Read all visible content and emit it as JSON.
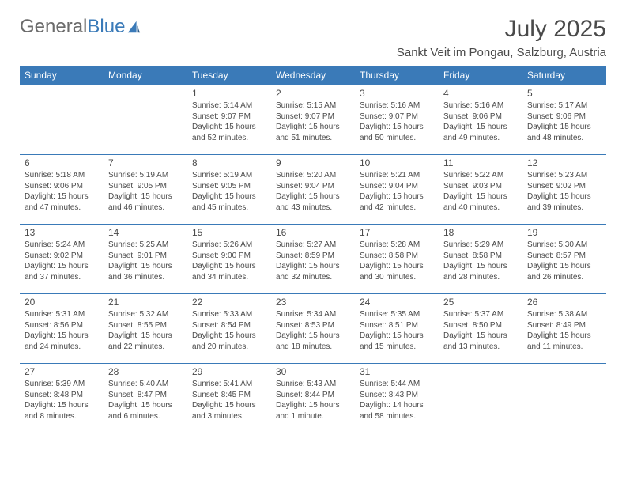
{
  "logo": {
    "text1": "General",
    "text2": "Blue"
  },
  "title": "July 2025",
  "location": "Sankt Veit im Pongau, Salzburg, Austria",
  "header_bg": "#3a7ab8",
  "days_of_week": [
    "Sunday",
    "Monday",
    "Tuesday",
    "Wednesday",
    "Thursday",
    "Friday",
    "Saturday"
  ],
  "weeks": [
    [
      null,
      null,
      {
        "n": "1",
        "sr": "5:14 AM",
        "ss": "9:07 PM",
        "dl": "15 hours and 52 minutes."
      },
      {
        "n": "2",
        "sr": "5:15 AM",
        "ss": "9:07 PM",
        "dl": "15 hours and 51 minutes."
      },
      {
        "n": "3",
        "sr": "5:16 AM",
        "ss": "9:07 PM",
        "dl": "15 hours and 50 minutes."
      },
      {
        "n": "4",
        "sr": "5:16 AM",
        "ss": "9:06 PM",
        "dl": "15 hours and 49 minutes."
      },
      {
        "n": "5",
        "sr": "5:17 AM",
        "ss": "9:06 PM",
        "dl": "15 hours and 48 minutes."
      }
    ],
    [
      {
        "n": "6",
        "sr": "5:18 AM",
        "ss": "9:06 PM",
        "dl": "15 hours and 47 minutes."
      },
      {
        "n": "7",
        "sr": "5:19 AM",
        "ss": "9:05 PM",
        "dl": "15 hours and 46 minutes."
      },
      {
        "n": "8",
        "sr": "5:19 AM",
        "ss": "9:05 PM",
        "dl": "15 hours and 45 minutes."
      },
      {
        "n": "9",
        "sr": "5:20 AM",
        "ss": "9:04 PM",
        "dl": "15 hours and 43 minutes."
      },
      {
        "n": "10",
        "sr": "5:21 AM",
        "ss": "9:04 PM",
        "dl": "15 hours and 42 minutes."
      },
      {
        "n": "11",
        "sr": "5:22 AM",
        "ss": "9:03 PM",
        "dl": "15 hours and 40 minutes."
      },
      {
        "n": "12",
        "sr": "5:23 AM",
        "ss": "9:02 PM",
        "dl": "15 hours and 39 minutes."
      }
    ],
    [
      {
        "n": "13",
        "sr": "5:24 AM",
        "ss": "9:02 PM",
        "dl": "15 hours and 37 minutes."
      },
      {
        "n": "14",
        "sr": "5:25 AM",
        "ss": "9:01 PM",
        "dl": "15 hours and 36 minutes."
      },
      {
        "n": "15",
        "sr": "5:26 AM",
        "ss": "9:00 PM",
        "dl": "15 hours and 34 minutes."
      },
      {
        "n": "16",
        "sr": "5:27 AM",
        "ss": "8:59 PM",
        "dl": "15 hours and 32 minutes."
      },
      {
        "n": "17",
        "sr": "5:28 AM",
        "ss": "8:58 PM",
        "dl": "15 hours and 30 minutes."
      },
      {
        "n": "18",
        "sr": "5:29 AM",
        "ss": "8:58 PM",
        "dl": "15 hours and 28 minutes."
      },
      {
        "n": "19",
        "sr": "5:30 AM",
        "ss": "8:57 PM",
        "dl": "15 hours and 26 minutes."
      }
    ],
    [
      {
        "n": "20",
        "sr": "5:31 AM",
        "ss": "8:56 PM",
        "dl": "15 hours and 24 minutes."
      },
      {
        "n": "21",
        "sr": "5:32 AM",
        "ss": "8:55 PM",
        "dl": "15 hours and 22 minutes."
      },
      {
        "n": "22",
        "sr": "5:33 AM",
        "ss": "8:54 PM",
        "dl": "15 hours and 20 minutes."
      },
      {
        "n": "23",
        "sr": "5:34 AM",
        "ss": "8:53 PM",
        "dl": "15 hours and 18 minutes."
      },
      {
        "n": "24",
        "sr": "5:35 AM",
        "ss": "8:51 PM",
        "dl": "15 hours and 15 minutes."
      },
      {
        "n": "25",
        "sr": "5:37 AM",
        "ss": "8:50 PM",
        "dl": "15 hours and 13 minutes."
      },
      {
        "n": "26",
        "sr": "5:38 AM",
        "ss": "8:49 PM",
        "dl": "15 hours and 11 minutes."
      }
    ],
    [
      {
        "n": "27",
        "sr": "5:39 AM",
        "ss": "8:48 PM",
        "dl": "15 hours and 8 minutes."
      },
      {
        "n": "28",
        "sr": "5:40 AM",
        "ss": "8:47 PM",
        "dl": "15 hours and 6 minutes."
      },
      {
        "n": "29",
        "sr": "5:41 AM",
        "ss": "8:45 PM",
        "dl": "15 hours and 3 minutes."
      },
      {
        "n": "30",
        "sr": "5:43 AM",
        "ss": "8:44 PM",
        "dl": "15 hours and 1 minute."
      },
      {
        "n": "31",
        "sr": "5:44 AM",
        "ss": "8:43 PM",
        "dl": "14 hours and 58 minutes."
      },
      null,
      null
    ]
  ],
  "labels": {
    "sunrise": "Sunrise: ",
    "sunset": "Sunset: ",
    "daylight": "Daylight: "
  }
}
